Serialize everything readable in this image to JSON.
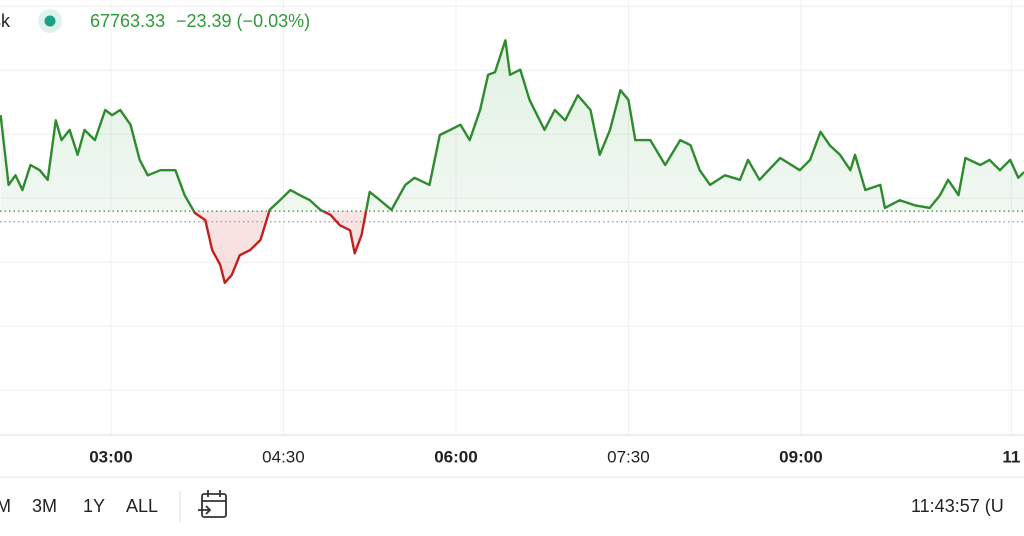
{
  "header": {
    "symbol_fragment": "sk",
    "price": 67763.33,
    "change": "−23.39 (−0.03%)"
  },
  "chart_data": {
    "type": "line",
    "x": [
      2.04,
      2.11,
      2.17,
      2.23,
      2.3,
      2.38,
      2.45,
      2.52,
      2.57,
      2.64,
      2.71,
      2.77,
      2.86,
      2.95,
      3.01,
      3.08,
      3.17,
      3.25,
      3.32,
      3.43,
      3.56,
      3.64,
      3.73,
      3.82,
      3.88,
      3.95,
      3.99,
      4.05,
      4.12,
      4.21,
      4.3,
      4.38,
      4.47,
      4.56,
      4.64,
      4.73,
      4.82,
      4.91,
      4.99,
      5.08,
      5.12,
      5.18,
      5.25,
      5.34,
      5.44,
      5.56,
      5.64,
      5.77,
      5.86,
      5.95,
      6.04,
      6.12,
      6.21,
      6.28,
      6.34,
      6.43,
      6.47,
      6.56,
      6.64,
      6.77,
      6.86,
      6.95,
      7.06,
      7.17,
      7.25,
      7.34,
      7.43,
      7.5,
      7.56,
      7.69,
      7.82,
      7.95,
      8.04,
      8.12,
      8.21,
      8.34,
      8.47,
      8.54,
      8.64,
      8.82,
      8.99,
      9.08,
      9.17,
      9.25,
      9.34,
      9.43,
      9.47,
      9.56,
      9.69,
      9.73,
      9.86,
      9.99,
      10.12,
      10.21,
      10.28,
      10.37,
      10.43,
      10.56,
      10.64,
      10.73,
      10.82,
      10.89,
      10.94
    ],
    "values": [
      67930,
      67821,
      67836,
      67813,
      67852,
      67844,
      67829,
      67922,
      67891,
      67907,
      67868,
      67907,
      67891,
      67938,
      67930,
      67938,
      67915,
      67860,
      67836,
      67844,
      67844,
      67805,
      67777,
      67766,
      67719,
      67696,
      67668,
      67680,
      67711,
      67719,
      67735,
      67782,
      67797,
      67813,
      67805,
      67797,
      67782,
      67774,
      67758,
      67750,
      67714,
      67743,
      67810,
      67797,
      67782,
      67821,
      67832,
      67821,
      67899,
      67907,
      67915,
      67891,
      67938,
      67993,
      67997,
      68047,
      67993,
      68001,
      67954,
      67907,
      67938,
      67922,
      67961,
      67938,
      67868,
      67907,
      67969,
      67954,
      67891,
      67891,
      67852,
      67891,
      67883,
      67844,
      67821,
      67836,
      67829,
      67860,
      67829,
      67863,
      67844,
      67860,
      67904,
      67883,
      67868,
      67844,
      67868,
      67813,
      67821,
      67785,
      67797,
      67789,
      67785,
      67805,
      67829,
      67805,
      67863,
      67852,
      67860,
      67844,
      67860,
      67832,
      67841
    ],
    "baseline": 67780,
    "color": "#2e8b2e",
    "color_below": "#c0211f",
    "xlim": [
      2.035,
      10.94
    ],
    "ylim": [
      67430,
      68110
    ],
    "xticks": [
      {
        "value": 3,
        "label": "03:00",
        "bold": true
      },
      {
        "value": 4.5,
        "label": "04:30"
      },
      {
        "value": 6,
        "label": "06:00",
        "bold": true
      },
      {
        "value": 7.5,
        "label": "07:30"
      },
      {
        "value": 9,
        "label": "09:00",
        "bold": true
      },
      {
        "value": 10.83,
        "label": "11",
        "bold": true
      }
    ],
    "yticks": [
      67500,
      67600,
      67700,
      67800,
      67900,
      68000,
      68100
    ],
    "grid": true
  },
  "footer": {
    "ranges": [
      "M",
      "3M",
      "1Y",
      "ALL"
    ],
    "time": "11:43:57 (U"
  }
}
